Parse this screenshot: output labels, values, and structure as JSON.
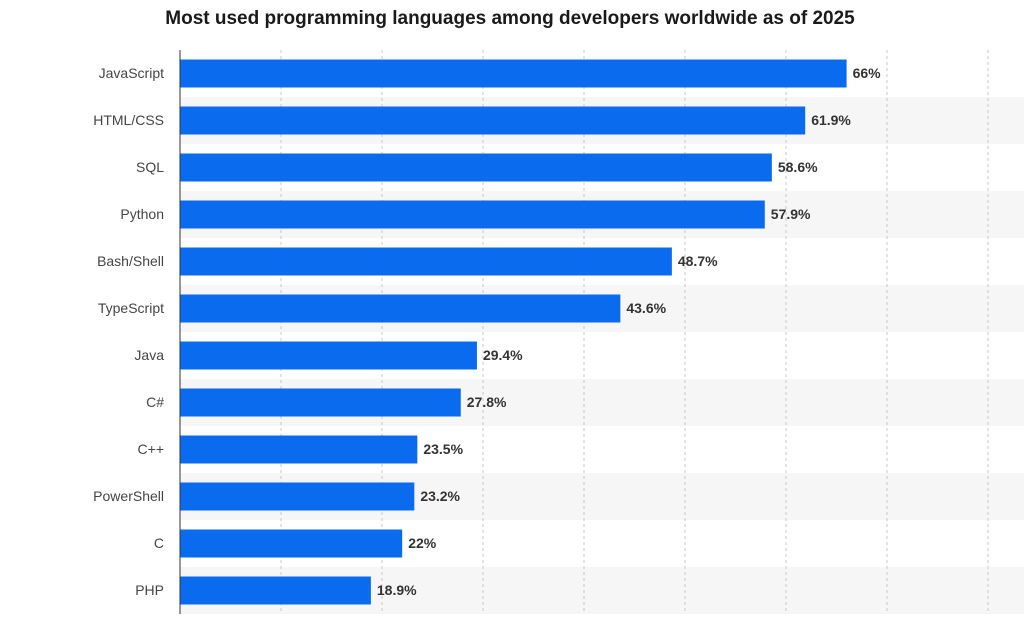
{
  "chart_data": {
    "type": "hbar",
    "title": "Most used programming languages among developers worldwide as of 2025",
    "categories": [
      "JavaScript",
      "HTML/CSS",
      "SQL",
      "Python",
      "Bash/Shell",
      "TypeScript",
      "Java",
      "C#",
      "C++",
      "PowerShell",
      "C",
      "PHP"
    ],
    "values": [
      66,
      61.9,
      58.6,
      57.9,
      48.7,
      43.6,
      29.4,
      27.8,
      23.5,
      23.2,
      22,
      18.9
    ],
    "value_labels": [
      "66%",
      "61.9%",
      "58.6%",
      "57.9%",
      "48.7%",
      "43.6%",
      "29.4%",
      "27.8%",
      "23.5%",
      "23.2%",
      "22%",
      "18.9%"
    ],
    "color": "#0b6bee",
    "xlim": [
      0,
      80
    ],
    "xticks": [
      0,
      10,
      20,
      30,
      40,
      50,
      60,
      70,
      80
    ],
    "grid": true
  }
}
